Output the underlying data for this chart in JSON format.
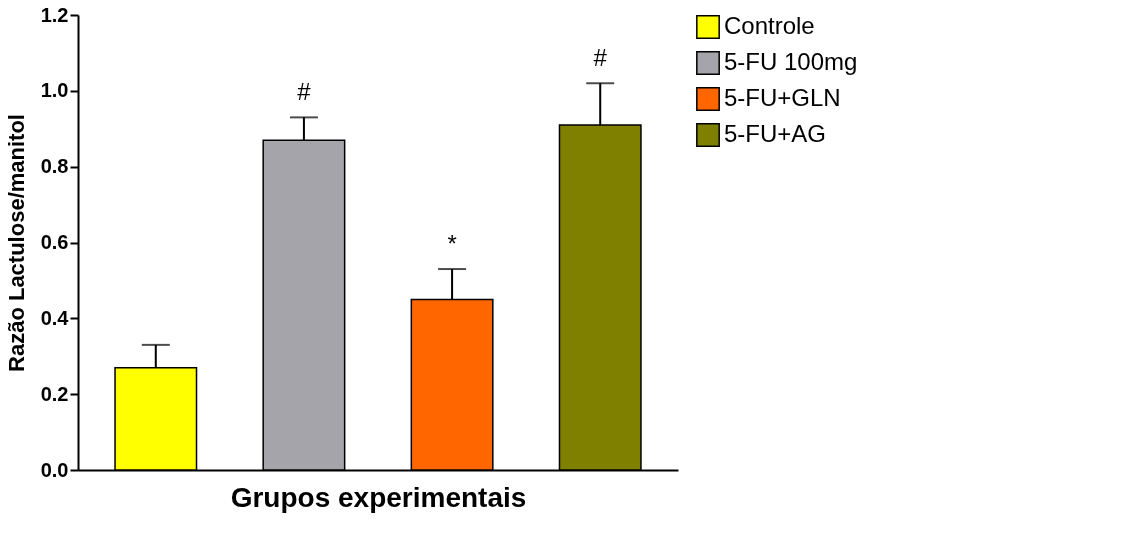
{
  "chart_data": {
    "type": "bar",
    "xlabel": "Grupos experimentais",
    "ylabel": "Razão Lactulose/manitol",
    "categories": [
      null,
      null,
      null,
      null
    ],
    "series": [
      {
        "name": "Controle",
        "color": "#ffff00",
        "values": [
          0.27,
          null,
          null,
          null
        ],
        "errors": [
          0.06,
          null,
          null,
          null
        ]
      },
      {
        "name": "5-FU 100mg",
        "color": "#a5a4aa",
        "values": [
          null,
          0.87,
          null,
          null
        ],
        "errors": [
          null,
          0.06,
          null,
          null
        ],
        "value_labels": [
          null,
          "#",
          null,
          null
        ]
      },
      {
        "name": "5-FU+GLN",
        "color": "#ff6600",
        "values": [
          null,
          null,
          0.45,
          null
        ],
        "errors": [
          null,
          null,
          0.08,
          null
        ],
        "value_labels": [
          null,
          null,
          "*",
          null
        ]
      },
      {
        "name": "5-FU+AG",
        "color": "#808000",
        "values": [
          null,
          null,
          null,
          0.91
        ],
        "errors": [
          null,
          null,
          null,
          0.11
        ],
        "value_labels": [
          null,
          null,
          null,
          "#"
        ]
      }
    ],
    "ylim": [
      0,
      1.2
    ],
    "yticks": [
      {
        "value": 0,
        "label": "0.0"
      },
      {
        "value": 0.2,
        "label": "0.2"
      },
      {
        "value": 0.4,
        "label": "0.4"
      },
      {
        "value": 0.6,
        "label": "0.6"
      },
      {
        "value": 0.8,
        "label": "0.8"
      },
      {
        "value": 1.0,
        "label": "1.0"
      },
      {
        "value": 1.2,
        "label": "1.2"
      }
    ],
    "grid": false,
    "legend": "top right",
    "tick_labels": "y"
  }
}
